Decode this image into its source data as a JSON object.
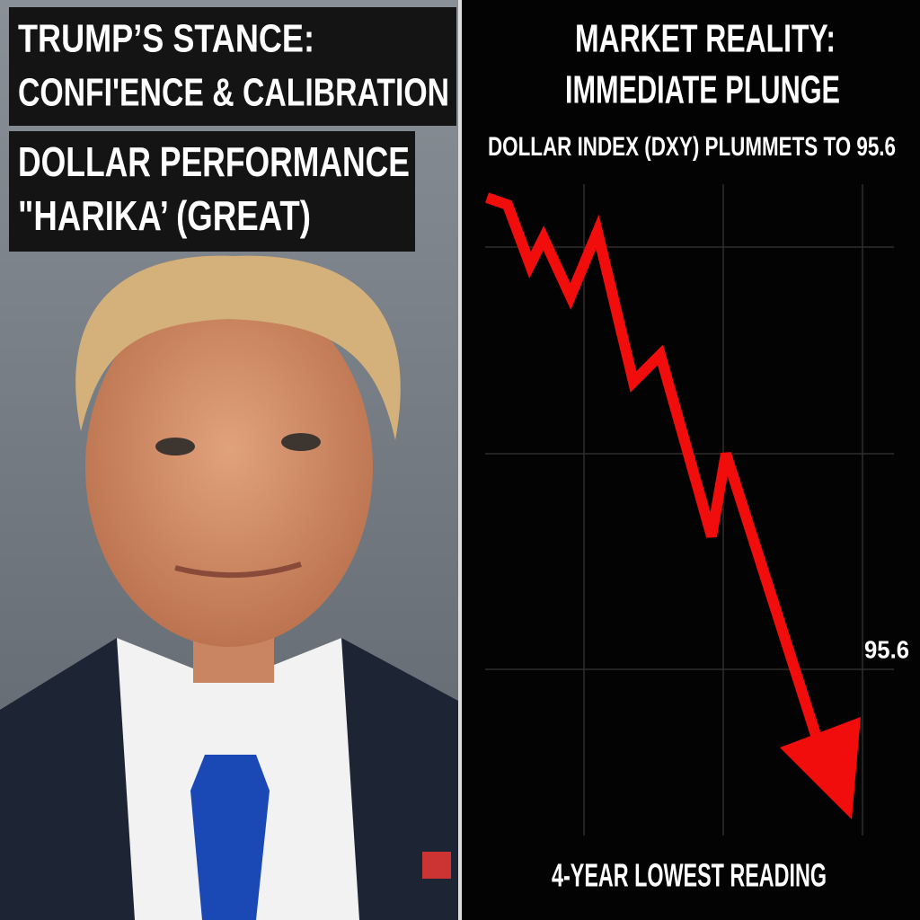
{
  "left_panel": {
    "headline": [
      "TRUMP’S STANCE:",
      "CONFI'ENCE & CALIBRATION"
    ],
    "subhead": [
      "DOLLAR PERFORMANCE",
      "\"HARIKA’ (GREAT)"
    ]
  },
  "right_panel": {
    "title": [
      "MARKET REALITY:",
      "IMMEDIATE PLUNGE"
    ],
    "subtitle": "DOLLAR INDEX (DXY) PLUMMETS TO 95.6",
    "end_label": "95.6",
    "footer": "4-YEAR LOWEST READING"
  }
}
